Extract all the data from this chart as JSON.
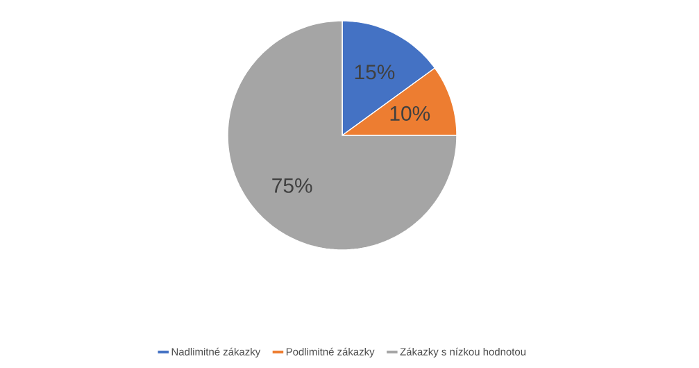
{
  "chart_data": {
    "type": "pie",
    "categories": [
      "Nadlimitné zákazky",
      "Podlimitné zákazky",
      "Zákazky s nízkou hodnotou"
    ],
    "values": [
      15,
      10,
      75
    ],
    "colors": [
      "#4472c4",
      "#ed7d31",
      "#a5a5a5"
    ],
    "value_labels": [
      "15%",
      "10%",
      "75%"
    ],
    "legend": "bottom"
  }
}
